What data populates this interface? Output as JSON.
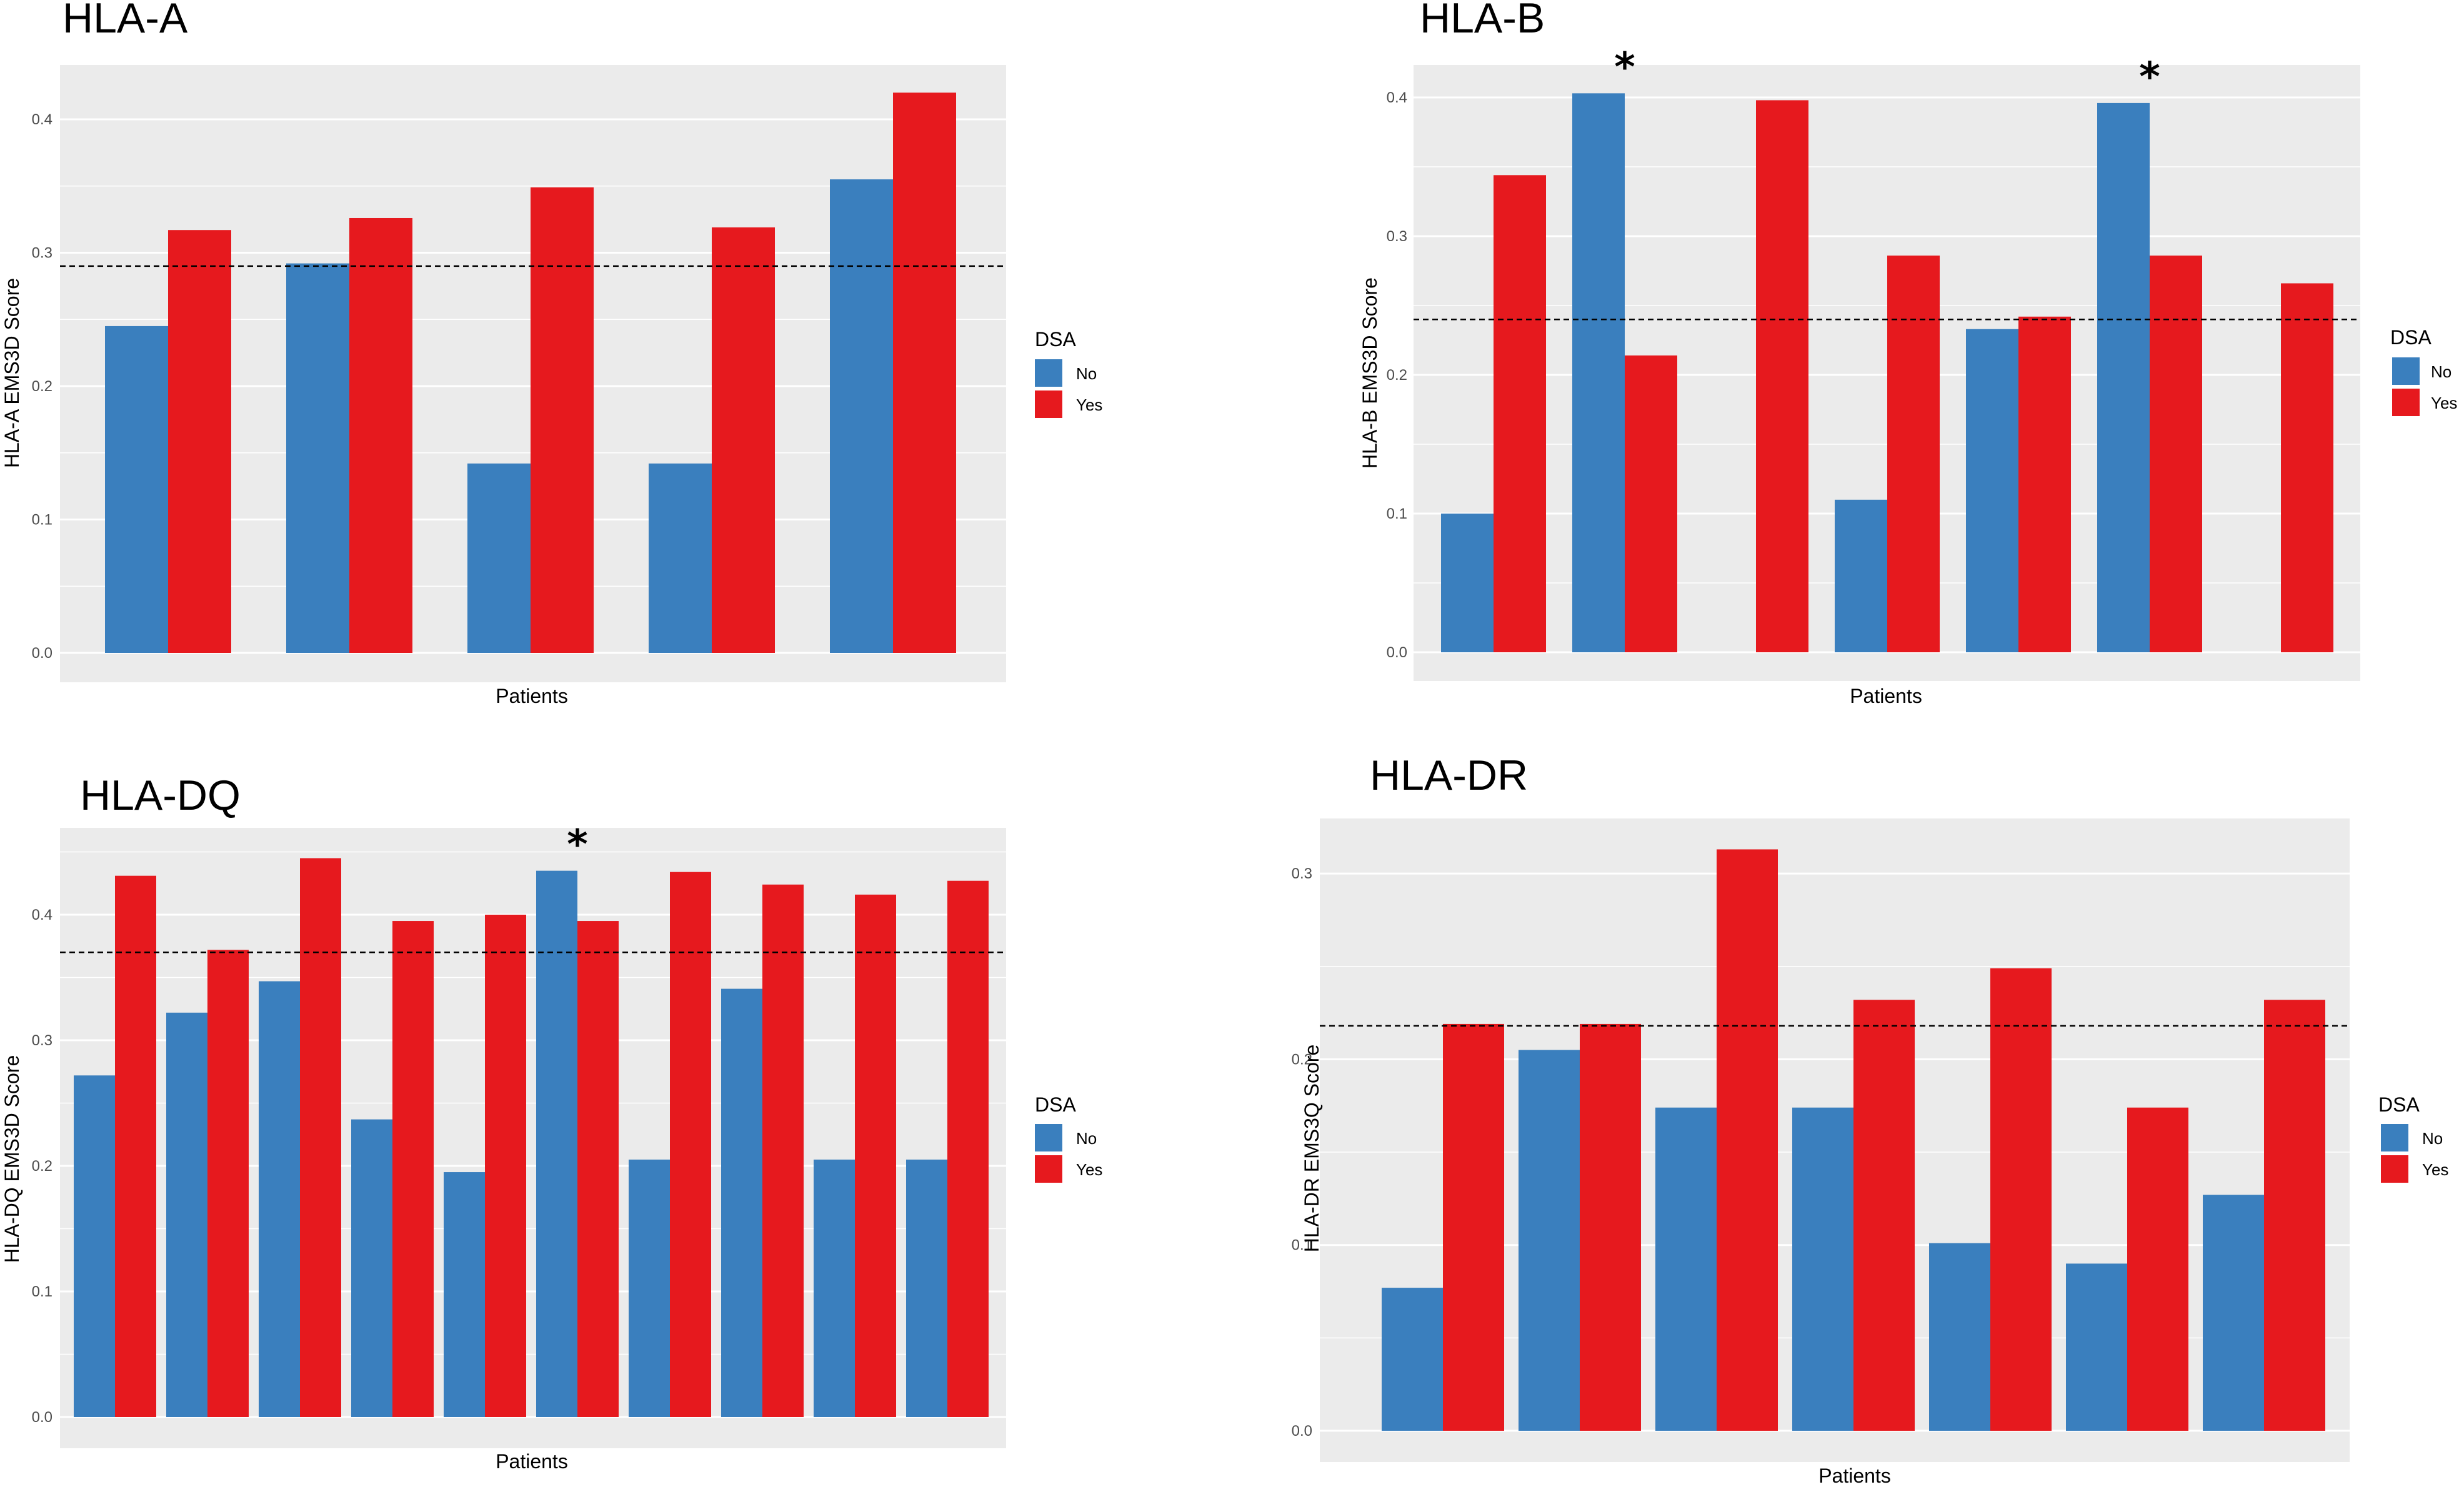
{
  "colors": {
    "no": "#3a7fbe",
    "yes": "#e6191e",
    "panel_bg": "#ebebeb",
    "grid": "#ffffff"
  },
  "legend": {
    "title": "DSA",
    "labels": [
      "No",
      "Yes"
    ]
  },
  "chart_data": [
    {
      "id": "hla-a",
      "type": "bar",
      "panel_title": "HLA-A",
      "xlabel": "Patients",
      "ylabel": "HLA-A EMS3D Score",
      "ylim": [
        0,
        0.43
      ],
      "yticks": [
        0.0,
        0.1,
        0.2,
        0.3,
        0.4
      ],
      "ytick_labels": [
        "0.0",
        "0.1",
        "0.2",
        "0.3",
        "0.4"
      ],
      "threshold": 0.29,
      "series": [
        {
          "name": "No",
          "values": [
            0.245,
            0.292,
            0.142,
            0.142,
            0.355
          ]
        },
        {
          "name": "Yes",
          "values": [
            0.317,
            0.326,
            0.349,
            0.319,
            0.42
          ]
        }
      ],
      "stars": []
    },
    {
      "id": "hla-b",
      "type": "bar",
      "panel_title": "HLA-B",
      "xlabel": "Patients",
      "ylabel": "HLA-B EMS3D Score",
      "ylim": [
        0,
        0.42
      ],
      "yticks": [
        0.0,
        0.1,
        0.2,
        0.3,
        0.4
      ],
      "ytick_labels": [
        "0.0",
        "0.1",
        "0.2",
        "0.3",
        "0.4"
      ],
      "threshold": 0.24,
      "series": [
        {
          "name": "No",
          "values": [
            0.1,
            0.403,
            null,
            0.11,
            0.233,
            0.396,
            null
          ]
        },
        {
          "name": "Yes",
          "values": [
            0.344,
            0.214,
            0.398,
            0.286,
            0.242,
            0.286,
            0.266
          ]
        }
      ],
      "stars": [
        1,
        5
      ],
      "star_label": "*"
    },
    {
      "id": "hla-dq",
      "type": "bar",
      "panel_title": "HLA-DQ",
      "xlabel": "Patients",
      "ylabel": "HLA-DQ EMS3D Score",
      "ylim": [
        0,
        0.46
      ],
      "yticks": [
        0.0,
        0.1,
        0.2,
        0.3,
        0.4
      ],
      "ytick_labels": [
        "0.0",
        "0.1",
        "0.2",
        "0.3",
        "0.4"
      ],
      "threshold": 0.37,
      "series": [
        {
          "name": "No",
          "values": [
            0.272,
            0.322,
            0.347,
            0.237,
            0.195,
            0.435,
            0.205,
            0.341,
            0.205,
            0.205
          ]
        },
        {
          "name": "Yes",
          "values": [
            0.431,
            0.372,
            0.445,
            0.395,
            0.4,
            0.395,
            0.434,
            0.424,
            0.416,
            0.427
          ]
        }
      ],
      "stars": [
        5
      ],
      "star_label": "*"
    },
    {
      "id": "hla-dr",
      "type": "bar",
      "panel_title": "HLA-DR",
      "xlabel": "Patients",
      "ylabel": "HLA-DR EMS3Q Score",
      "ylim": [
        0,
        0.33
      ],
      "yticks": [
        0.0,
        0.1,
        0.2,
        0.3
      ],
      "ytick_labels": [
        "0.0",
        "0.1",
        "0.2",
        "0.3"
      ],
      "threshold": 0.218,
      "series": [
        {
          "name": "No",
          "values": [
            0.077,
            0.205,
            0.174,
            0.174,
            0.101,
            0.09,
            0.127
          ]
        },
        {
          "name": "Yes",
          "values": [
            0.219,
            0.219,
            0.313,
            0.232,
            0.249,
            0.174,
            0.232
          ]
        }
      ],
      "stars": []
    }
  ]
}
